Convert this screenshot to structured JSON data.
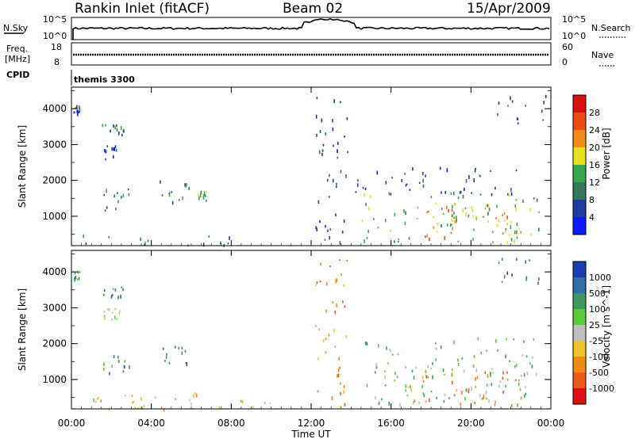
{
  "header": {
    "station": "Rankin Inlet (fitACF)",
    "beam": "Beam 02",
    "date": "15/Apr/2009"
  },
  "summary_panels": {
    "nsky_label": "N.Sky",
    "nsky_ticks": [
      "10^5",
      "10^0"
    ],
    "nsearch_label": "N.Search",
    "nsearch_ticks": [
      "10^5",
      "10^0"
    ],
    "freq_label": "Freq.",
    "freq_unit": "[MHz]",
    "freq_ticks": [
      "18",
      "8"
    ],
    "nave_label": "Nave",
    "nave_ticks": [
      "60",
      "0"
    ],
    "cpid_label": "CPID",
    "cpid_value": "themis 3300"
  },
  "chart_data": [
    {
      "type": "heatmap",
      "name": "power",
      "ylabel": "Slant Range [km]",
      "xlabel": "Time UT",
      "x_ticks": [
        "00:00",
        "04:00",
        "08:00",
        "12:00",
        "16:00",
        "20:00",
        "00:00"
      ],
      "x_hours": [
        0,
        4,
        8,
        12,
        16,
        20,
        24
      ],
      "xlim": [
        0,
        24
      ],
      "ylim": [
        180,
        4600
      ],
      "y_ticks": [
        1000,
        2000,
        3000,
        4000
      ],
      "colorbar": {
        "label": "Power [dB]",
        "levels": [
          "4",
          "8",
          "12",
          "16",
          "20",
          "24",
          "28"
        ],
        "colors": [
          "#0a1aff",
          "#1e3ca0",
          "#2e7a5a",
          "#3aa650",
          "#e6e01e",
          "#f28c14",
          "#ee4a14",
          "#d91010"
        ]
      },
      "regions": [
        {
          "t": [
            0.1,
            0.4
          ],
          "r": [
            3800,
            4100
          ],
          "level": 1
        },
        {
          "t": [
            1.4,
            2.6
          ],
          "r": [
            3300,
            3600
          ],
          "level": 2
        },
        {
          "t": [
            1.6,
            2.4
          ],
          "r": [
            2600,
            3000
          ],
          "level": 1
        },
        {
          "t": [
            1.3,
            2.9
          ],
          "r": [
            1150,
            1800
          ],
          "level": 2
        },
        {
          "t": [
            4.4,
            5.9
          ],
          "r": [
            1400,
            2000
          ],
          "level": 2
        },
        {
          "t": [
            6.3,
            6.8
          ],
          "r": [
            1450,
            1750
          ],
          "level": 3
        },
        {
          "t": [
            12.2,
            13.8
          ],
          "r": [
            250,
            4400
          ],
          "level": 1
        },
        {
          "t": [
            14.2,
            22.5
          ],
          "r": [
            1600,
            2400
          ],
          "level": 1
        },
        {
          "t": [
            14.5,
            23.5
          ],
          "r": [
            300,
            1700
          ],
          "level": 3
        },
        {
          "t": [
            16.5,
            22.5
          ],
          "r": [
            400,
            1400
          ],
          "level": 5
        },
        {
          "t": [
            21.3,
            23.8
          ],
          "r": [
            3600,
            4400
          ],
          "level": 1
        },
        {
          "t": [
            0.5,
            8.0
          ],
          "r": [
            200,
            500
          ],
          "level": 2
        }
      ]
    },
    {
      "type": "heatmap",
      "name": "velocity",
      "ylabel": "Slant Range [km]",
      "xlabel": "Time UT",
      "x_ticks": [
        "00:00",
        "04:00",
        "08:00",
        "12:00",
        "16:00",
        "20:00",
        "00:00"
      ],
      "x_hours": [
        0,
        4,
        8,
        12,
        16,
        20,
        24
      ],
      "xlim": [
        0,
        24
      ],
      "ylim": [
        180,
        4600
      ],
      "y_ticks": [
        1000,
        2000,
        3000,
        4000
      ],
      "colorbar": {
        "label": "Velocity [m s^-1]",
        "levels": [
          "1000",
          "500",
          "100",
          "25",
          "-25",
          "-100",
          "-500",
          "-1000"
        ],
        "colors": [
          "#1a3cb4",
          "#2f6ea8",
          "#3e9a5c",
          "#58cc34",
          "#bebebe",
          "#f0c22a",
          "#f28a14",
          "#ee5a14",
          "#e01010"
        ]
      },
      "regions": [
        {
          "t": [
            0.1,
            0.4
          ],
          "r": [
            3800,
            4100
          ],
          "level": 2
        },
        {
          "t": [
            1.4,
            2.6
          ],
          "r": [
            3300,
            3600
          ],
          "level": 2
        },
        {
          "t": [
            1.6,
            2.4
          ],
          "r": [
            2600,
            3000
          ],
          "level": 4
        },
        {
          "t": [
            1.3,
            2.9
          ],
          "r": [
            1150,
            1800
          ],
          "level": 2
        },
        {
          "t": [
            4.4,
            5.9
          ],
          "r": [
            1400,
            2000
          ],
          "level": 1
        },
        {
          "t": [
            12.2,
            13.8
          ],
          "r": [
            250,
            4400
          ],
          "level": 6
        },
        {
          "t": [
            14.5,
            23.5
          ],
          "r": [
            300,
            2200
          ],
          "level": 3
        },
        {
          "t": [
            16.5,
            22.5
          ],
          "r": [
            300,
            1300
          ],
          "level": 6
        },
        {
          "t": [
            21.3,
            23.8
          ],
          "r": [
            3600,
            4400
          ],
          "level": 1
        },
        {
          "t": [
            0.5,
            10.0
          ],
          "r": [
            200,
            700
          ],
          "level": 5
        }
      ]
    }
  ]
}
